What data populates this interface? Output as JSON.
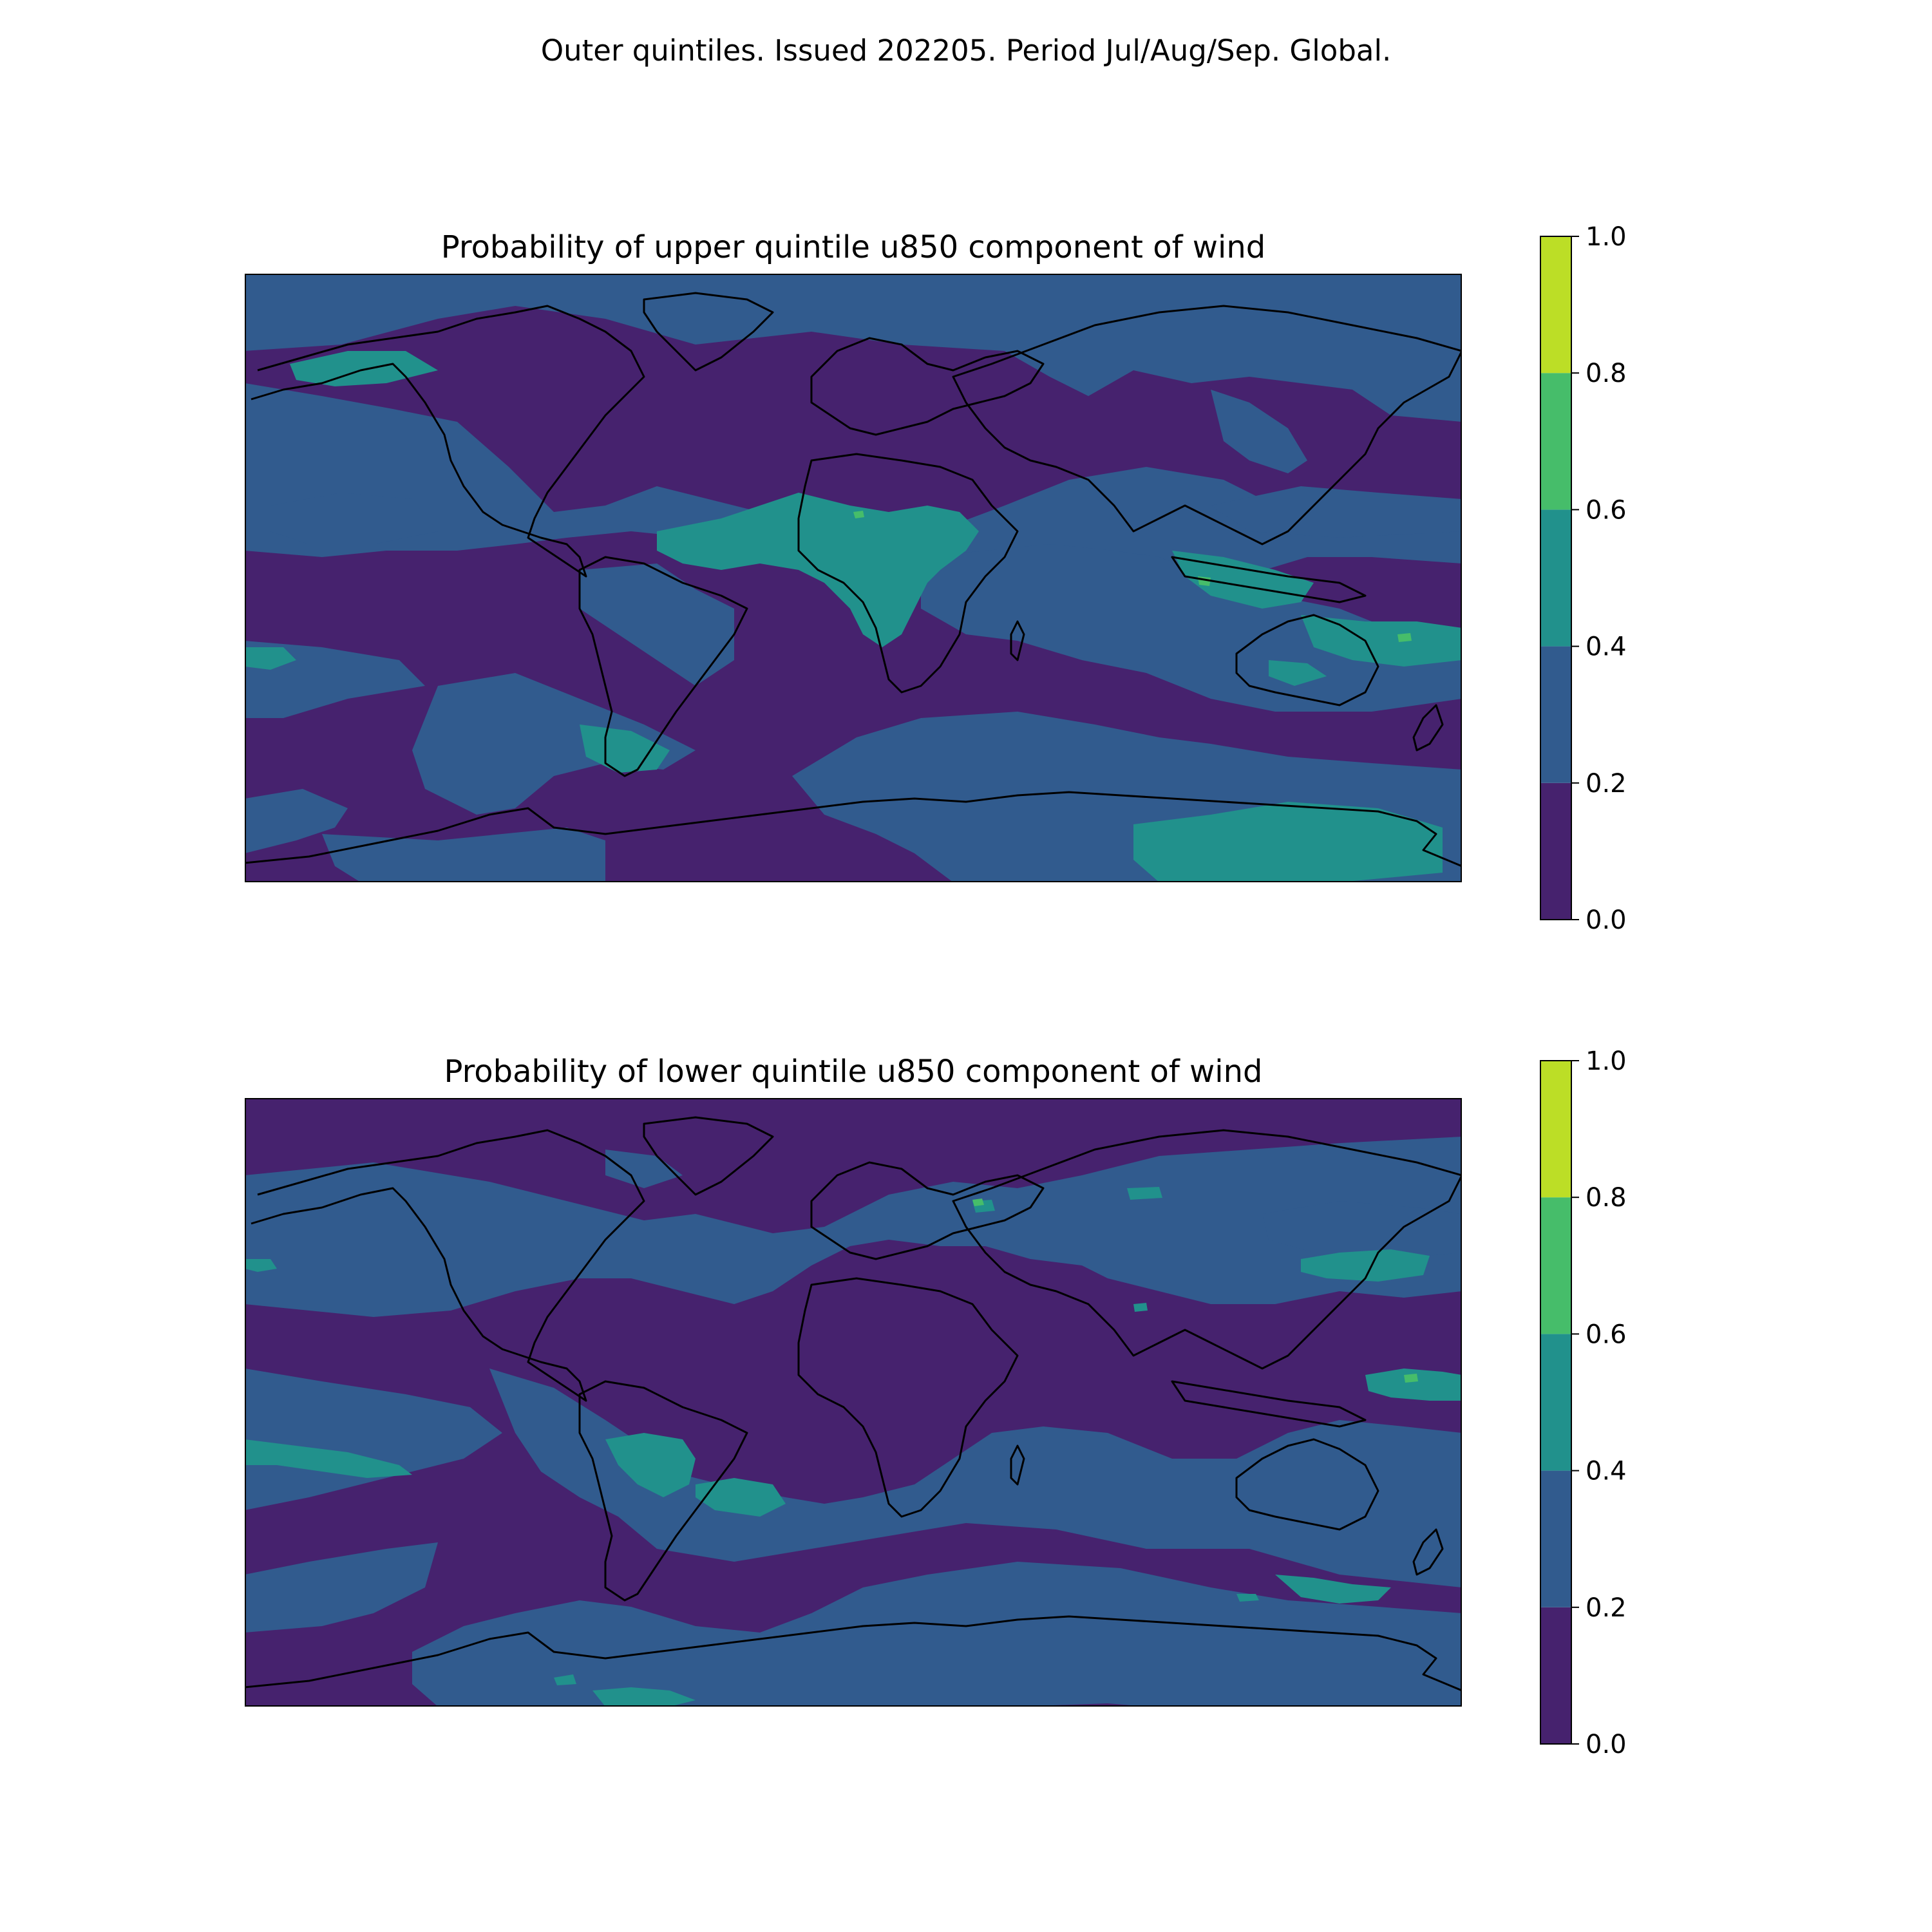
{
  "figure": {
    "suptitle": "Outer quintiles. Issued 202205. Period Jul/Aug/Sep. Global."
  },
  "panels": [
    {
      "title": "Probability of upper quintile u850 component of wind"
    },
    {
      "title": "Probability of lower quintile u850 component of wind"
    }
  ],
  "colorbar": {
    "ticks": [
      "0.0",
      "0.2",
      "0.4",
      "0.6",
      "0.8",
      "1.0"
    ],
    "bins": [
      {
        "from": 0.0,
        "to": 0.2,
        "color": "#46226e"
      },
      {
        "from": 0.2,
        "to": 0.4,
        "color": "#315b8e"
      },
      {
        "from": 0.4,
        "to": 0.6,
        "color": "#21918c"
      },
      {
        "from": 0.6,
        "to": 0.8,
        "color": "#46bd6a"
      },
      {
        "from": 0.8,
        "to": 1.0,
        "color": "#bcde26"
      }
    ]
  },
  "colors": {
    "coastline": "#000000",
    "bin_0_0_2": "#46226e",
    "bin_0_2_0_4": "#315b8e",
    "bin_0_4_0_6": "#21918c",
    "bin_0_6_0_8": "#46bd6a",
    "bin_0_8_1_0": "#bcde26"
  }
}
